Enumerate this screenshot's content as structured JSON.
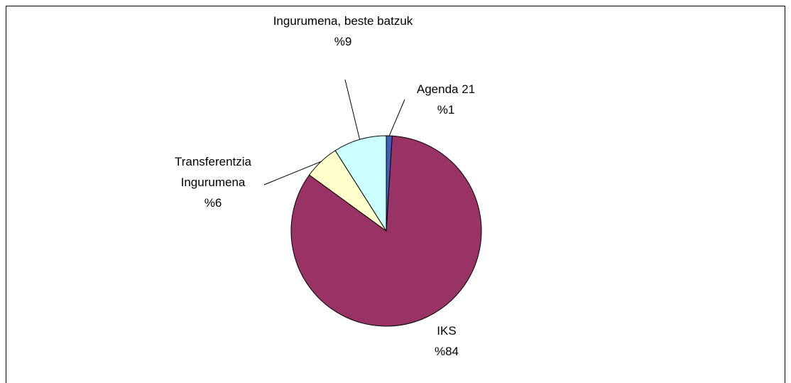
{
  "chart_data": {
    "type": "pie",
    "categories": [
      "Agenda 21",
      "IKS",
      "Transferentzia Ingurumena",
      "Ingurumena, beste batzuk"
    ],
    "values": [
      1,
      84,
      6,
      9
    ],
    "value_labels": [
      "%1",
      "%84",
      "%6",
      "%9"
    ],
    "colors": [
      "#3f5fb8",
      "#993366",
      "#ffffcc",
      "#ccffff"
    ]
  }
}
